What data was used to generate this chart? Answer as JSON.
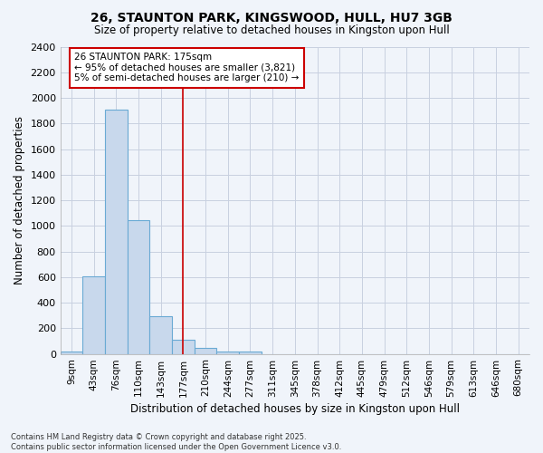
{
  "title": "26, STAUNTON PARK, KINGSWOOD, HULL, HU7 3GB",
  "subtitle": "Size of property relative to detached houses in Kingston upon Hull",
  "xlabel": "Distribution of detached houses by size in Kingston upon Hull",
  "ylabel": "Number of detached properties",
  "bar_color": "#c8d8ec",
  "bar_edge_color": "#6aaad4",
  "background_color": "#f0f4fa",
  "grid_color": "#c8d0e0",
  "categories": [
    "9sqm",
    "43sqm",
    "76sqm",
    "110sqm",
    "143sqm",
    "177sqm",
    "210sqm",
    "244sqm",
    "277sqm",
    "311sqm",
    "345sqm",
    "378sqm",
    "412sqm",
    "445sqm",
    "479sqm",
    "512sqm",
    "546sqm",
    "579sqm",
    "613sqm",
    "646sqm",
    "680sqm"
  ],
  "values": [
    15,
    605,
    1905,
    1045,
    295,
    110,
    45,
    20,
    15,
    0,
    0,
    0,
    0,
    0,
    0,
    0,
    0,
    0,
    0,
    0,
    0
  ],
  "ylim": [
    0,
    2400
  ],
  "yticks": [
    0,
    200,
    400,
    600,
    800,
    1000,
    1200,
    1400,
    1600,
    1800,
    2000,
    2200,
    2400
  ],
  "annotation_text": "26 STAUNTON PARK: 175sqm\n← 95% of detached houses are smaller (3,821)\n5% of semi-detached houses are larger (210) →",
  "annotation_box_color": "#ffffff",
  "annotation_box_edge": "#cc0000",
  "property_line_x": 5.0,
  "property_line_color": "#cc0000",
  "footer_line1": "Contains HM Land Registry data © Crown copyright and database right 2025.",
  "footer_line2": "Contains public sector information licensed under the Open Government Licence v3.0."
}
